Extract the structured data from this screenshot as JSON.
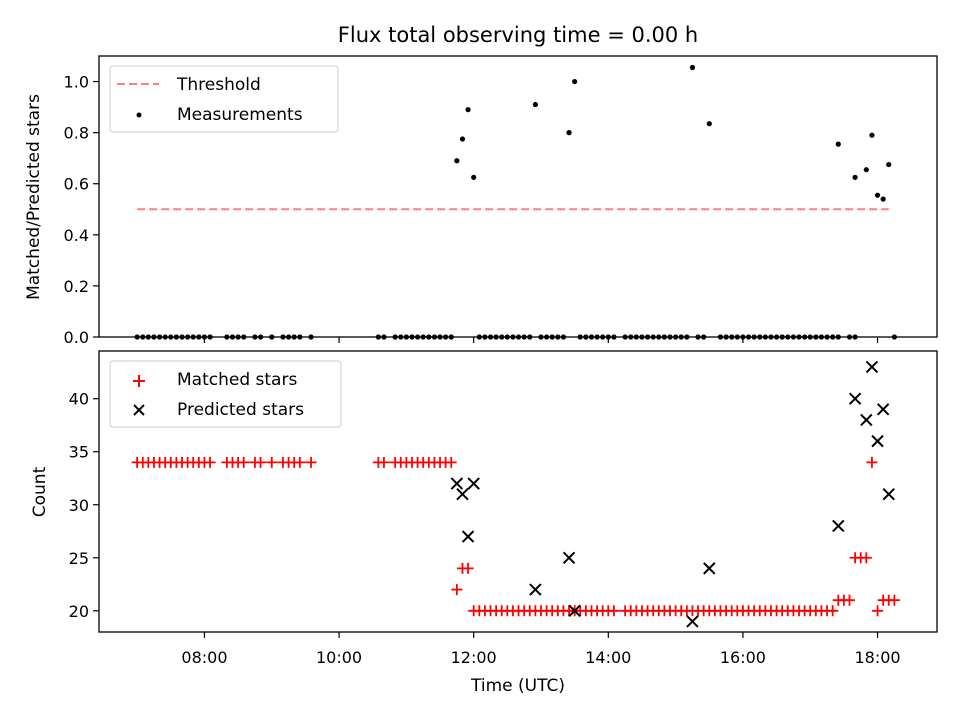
{
  "title": "Flux total observing time = 0.00 h",
  "colors": {
    "threshold": "#ff7f7f",
    "measurement": "#000000",
    "matched": "#ff0000",
    "predicted": "#000000"
  },
  "chart_data": [
    {
      "type": "scatter",
      "ylabel": "Matched/Predicted stars",
      "xlim": [
        "06:26",
        "18:53"
      ],
      "ylim": [
        0,
        1.1
      ],
      "yticks": [
        0.0,
        0.2,
        0.4,
        0.6,
        0.8,
        1.0
      ],
      "ytick_labels": [
        "0.0",
        "0.2",
        "0.4",
        "0.6",
        "0.8",
        "1.0"
      ],
      "legend": {
        "position": "top-left",
        "entries": [
          "Threshold",
          "Measurements"
        ]
      },
      "threshold": {
        "name": "Threshold",
        "value": 0.5,
        "x_range": [
          "07:00",
          "18:10"
        ]
      },
      "series": [
        {
          "name": "Measurements",
          "marker": "dot",
          "points": [
            [
              "07:00",
              0
            ],
            [
              "07:05",
              0
            ],
            [
              "07:10",
              0
            ],
            [
              "07:15",
              0
            ],
            [
              "07:20",
              0
            ],
            [
              "07:25",
              0
            ],
            [
              "07:30",
              0
            ],
            [
              "07:35",
              0
            ],
            [
              "07:40",
              0
            ],
            [
              "07:45",
              0
            ],
            [
              "07:50",
              0
            ],
            [
              "07:55",
              0
            ],
            [
              "08:00",
              0
            ],
            [
              "08:05",
              0
            ],
            [
              "08:20",
              0
            ],
            [
              "08:25",
              0
            ],
            [
              "08:30",
              0
            ],
            [
              "08:35",
              0
            ],
            [
              "08:45",
              0
            ],
            [
              "08:50",
              0
            ],
            [
              "09:00",
              0
            ],
            [
              "09:10",
              0
            ],
            [
              "09:15",
              0
            ],
            [
              "09:20",
              0
            ],
            [
              "09:25",
              0
            ],
            [
              "09:35",
              0
            ],
            [
              "10:35",
              0
            ],
            [
              "10:40",
              0
            ],
            [
              "10:50",
              0
            ],
            [
              "10:55",
              0
            ],
            [
              "11:00",
              0
            ],
            [
              "11:05",
              0
            ],
            [
              "11:10",
              0
            ],
            [
              "11:15",
              0
            ],
            [
              "11:20",
              0
            ],
            [
              "11:25",
              0
            ],
            [
              "11:30",
              0
            ],
            [
              "11:35",
              0
            ],
            [
              "11:40",
              0
            ],
            [
              "11:45",
              0.69
            ],
            [
              "11:50",
              0.775
            ],
            [
              "11:55",
              0.89
            ],
            [
              "12:00",
              0.625
            ],
            [
              "12:05",
              0
            ],
            [
              "12:10",
              0
            ],
            [
              "12:15",
              0
            ],
            [
              "12:20",
              0
            ],
            [
              "12:25",
              0
            ],
            [
              "12:30",
              0
            ],
            [
              "12:35",
              0
            ],
            [
              "12:40",
              0
            ],
            [
              "12:45",
              0
            ],
            [
              "12:50",
              0
            ],
            [
              "12:55",
              0.91
            ],
            [
              "13:00",
              0
            ],
            [
              "13:05",
              0
            ],
            [
              "13:10",
              0
            ],
            [
              "13:15",
              0
            ],
            [
              "13:20",
              0
            ],
            [
              "13:25",
              0.8
            ],
            [
              "13:35",
              0
            ],
            [
              "13:30",
              1.0
            ],
            [
              "13:40",
              0
            ],
            [
              "13:45",
              0
            ],
            [
              "13:50",
              0
            ],
            [
              "13:55",
              0
            ],
            [
              "14:00",
              0
            ],
            [
              "14:05",
              0
            ],
            [
              "14:15",
              0
            ],
            [
              "14:20",
              0
            ],
            [
              "14:25",
              0
            ],
            [
              "14:30",
              0
            ],
            [
              "14:35",
              0
            ],
            [
              "14:40",
              0
            ],
            [
              "14:45",
              0
            ],
            [
              "14:50",
              0
            ],
            [
              "14:55",
              0
            ],
            [
              "15:00",
              0
            ],
            [
              "15:05",
              0
            ],
            [
              "15:10",
              0
            ],
            [
              "15:15",
              1.055
            ],
            [
              "15:20",
              0
            ],
            [
              "15:25",
              0
            ],
            [
              "15:30",
              0.835
            ],
            [
              "15:40",
              0
            ],
            [
              "15:45",
              0
            ],
            [
              "15:50",
              0
            ],
            [
              "15:55",
              0
            ],
            [
              "16:00",
              0
            ],
            [
              "16:05",
              0
            ],
            [
              "16:10",
              0
            ],
            [
              "16:15",
              0
            ],
            [
              "16:20",
              0
            ],
            [
              "16:25",
              0
            ],
            [
              "16:30",
              0
            ],
            [
              "16:35",
              0
            ],
            [
              "16:40",
              0
            ],
            [
              "16:45",
              0
            ],
            [
              "16:50",
              0
            ],
            [
              "16:55",
              0
            ],
            [
              "17:00",
              0
            ],
            [
              "17:05",
              0
            ],
            [
              "17:10",
              0
            ],
            [
              "17:15",
              0
            ],
            [
              "17:20",
              0
            ],
            [
              "17:25",
              0
            ],
            [
              "17:25",
              0.755
            ],
            [
              "17:35",
              0
            ],
            [
              "17:40",
              0
            ],
            [
              "17:40",
              0.625
            ],
            [
              "17:50",
              0.655
            ],
            [
              "17:55",
              0.79
            ],
            [
              "18:00",
              0.555
            ],
            [
              "18:05",
              0.54
            ],
            [
              "18:10",
              0.675
            ],
            [
              "18:15",
              0
            ]
          ]
        }
      ]
    },
    {
      "type": "scatter",
      "xlabel": "Time (UTC)",
      "ylabel": "Count",
      "xlim": [
        "06:26",
        "18:53"
      ],
      "ylim": [
        18,
        44.5
      ],
      "xticks": [
        "08:00",
        "10:00",
        "12:00",
        "14:00",
        "16:00",
        "18:00"
      ],
      "yticks": [
        20,
        25,
        30,
        35,
        40
      ],
      "ytick_labels": [
        "20",
        "25",
        "30",
        "35",
        "40"
      ],
      "legend": {
        "position": "top-left",
        "entries": [
          "Matched stars",
          "Predicted stars"
        ]
      },
      "series": [
        {
          "name": "Matched stars",
          "marker": "plus",
          "points": [
            [
              "07:00",
              34
            ],
            [
              "07:05",
              34
            ],
            [
              "07:10",
              34
            ],
            [
              "07:15",
              34
            ],
            [
              "07:20",
              34
            ],
            [
              "07:25",
              34
            ],
            [
              "07:30",
              34
            ],
            [
              "07:35",
              34
            ],
            [
              "07:40",
              34
            ],
            [
              "07:45",
              34
            ],
            [
              "07:50",
              34
            ],
            [
              "07:55",
              34
            ],
            [
              "08:00",
              34
            ],
            [
              "08:05",
              34
            ],
            [
              "08:20",
              34
            ],
            [
              "08:25",
              34
            ],
            [
              "08:30",
              34
            ],
            [
              "08:35",
              34
            ],
            [
              "08:45",
              34
            ],
            [
              "08:50",
              34
            ],
            [
              "09:00",
              34
            ],
            [
              "09:10",
              34
            ],
            [
              "09:15",
              34
            ],
            [
              "09:20",
              34
            ],
            [
              "09:25",
              34
            ],
            [
              "09:35",
              34
            ],
            [
              "10:35",
              34
            ],
            [
              "10:40",
              34
            ],
            [
              "10:50",
              34
            ],
            [
              "10:55",
              34
            ],
            [
              "11:00",
              34
            ],
            [
              "11:05",
              34
            ],
            [
              "11:10",
              34
            ],
            [
              "11:15",
              34
            ],
            [
              "11:20",
              34
            ],
            [
              "11:25",
              34
            ],
            [
              "11:30",
              34
            ],
            [
              "11:35",
              34
            ],
            [
              "11:40",
              34
            ],
            [
              "11:45",
              22
            ],
            [
              "11:50",
              24
            ],
            [
              "11:55",
              24
            ],
            [
              "12:00",
              20
            ],
            [
              "12:05",
              20
            ],
            [
              "12:10",
              20
            ],
            [
              "12:15",
              20
            ],
            [
              "12:20",
              20
            ],
            [
              "12:25",
              20
            ],
            [
              "12:30",
              20
            ],
            [
              "12:35",
              20
            ],
            [
              "12:40",
              20
            ],
            [
              "12:45",
              20
            ],
            [
              "12:50",
              20
            ],
            [
              "12:55",
              20
            ],
            [
              "13:00",
              20
            ],
            [
              "13:05",
              20
            ],
            [
              "13:10",
              20
            ],
            [
              "13:15",
              20
            ],
            [
              "13:20",
              20
            ],
            [
              "13:25",
              20
            ],
            [
              "13:30",
              20
            ],
            [
              "13:35",
              20
            ],
            [
              "13:40",
              20
            ],
            [
              "13:45",
              20
            ],
            [
              "13:50",
              20
            ],
            [
              "13:55",
              20
            ],
            [
              "14:00",
              20
            ],
            [
              "14:05",
              20
            ],
            [
              "14:15",
              20
            ],
            [
              "14:20",
              20
            ],
            [
              "14:25",
              20
            ],
            [
              "14:30",
              20
            ],
            [
              "14:35",
              20
            ],
            [
              "14:40",
              20
            ],
            [
              "14:45",
              20
            ],
            [
              "14:50",
              20
            ],
            [
              "14:55",
              20
            ],
            [
              "15:00",
              20
            ],
            [
              "15:05",
              20
            ],
            [
              "15:10",
              20
            ],
            [
              "15:15",
              20
            ],
            [
              "15:20",
              20
            ],
            [
              "15:25",
              20
            ],
            [
              "15:30",
              20
            ],
            [
              "15:35",
              20
            ],
            [
              "15:40",
              20
            ],
            [
              "15:45",
              20
            ],
            [
              "15:50",
              20
            ],
            [
              "15:55",
              20
            ],
            [
              "16:00",
              20
            ],
            [
              "16:05",
              20
            ],
            [
              "16:10",
              20
            ],
            [
              "16:15",
              20
            ],
            [
              "16:20",
              20
            ],
            [
              "16:25",
              20
            ],
            [
              "16:30",
              20
            ],
            [
              "16:35",
              20
            ],
            [
              "16:40",
              20
            ],
            [
              "16:45",
              20
            ],
            [
              "16:50",
              20
            ],
            [
              "16:55",
              20
            ],
            [
              "17:00",
              20
            ],
            [
              "17:05",
              20
            ],
            [
              "17:10",
              20
            ],
            [
              "17:15",
              20
            ],
            [
              "17:20",
              20
            ],
            [
              "17:25",
              21
            ],
            [
              "17:30",
              21
            ],
            [
              "17:35",
              21
            ],
            [
              "17:40",
              25
            ],
            [
              "17:45",
              25
            ],
            [
              "17:50",
              25
            ],
            [
              "17:55",
              34
            ],
            [
              "18:00",
              20
            ],
            [
              "18:05",
              21
            ],
            [
              "18:10",
              21
            ],
            [
              "18:15",
              21
            ]
          ]
        },
        {
          "name": "Predicted stars",
          "marker": "x",
          "points": [
            [
              "11:45",
              32
            ],
            [
              "11:50",
              31
            ],
            [
              "11:55",
              27
            ],
            [
              "12:00",
              32
            ],
            [
              "12:55",
              22
            ],
            [
              "13:25",
              25
            ],
            [
              "13:30",
              20
            ],
            [
              "15:15",
              19
            ],
            [
              "15:30",
              24
            ],
            [
              "17:25",
              28
            ],
            [
              "17:40",
              40
            ],
            [
              "17:50",
              38
            ],
            [
              "17:55",
              43
            ],
            [
              "18:00",
              36
            ],
            [
              "18:05",
              39
            ],
            [
              "18:10",
              31
            ]
          ]
        }
      ]
    }
  ]
}
